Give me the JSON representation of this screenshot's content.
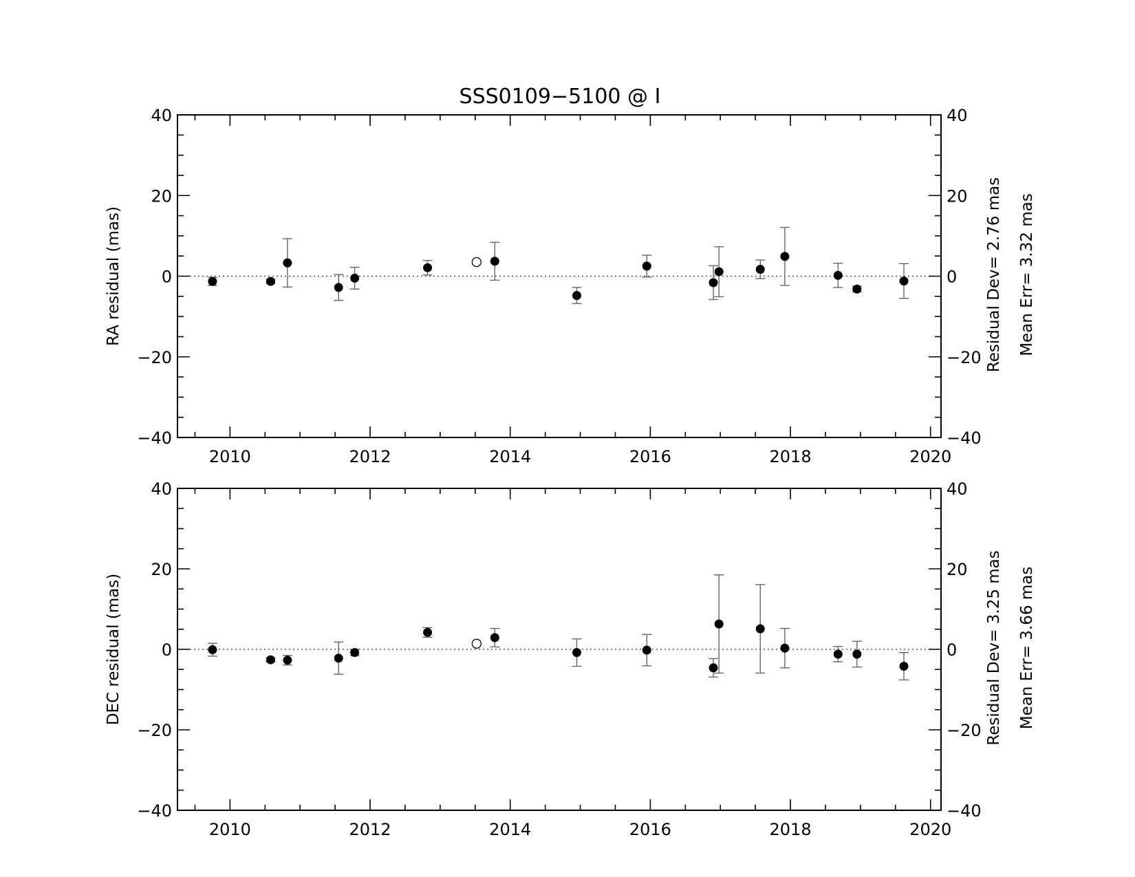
{
  "chart_data": {
    "type": "scatter",
    "title": "SSS0109−5100 @ I",
    "x_ticks": [
      "2010",
      "2012",
      "2014",
      "2016",
      "2018",
      "2020"
    ],
    "y_ticks": [
      "40",
      "20",
      "0",
      "−20",
      "−40"
    ],
    "xlim": [
      2009.25,
      2020.15
    ],
    "panels": [
      {
        "ylabel": "RA residual (mas)",
        "ylim": [
          -40,
          40
        ],
        "right_text": [
          "Residual Dev=   2.76 mas",
          "Mean Err=  3.32 mas"
        ],
        "points": [
          {
            "x": 2009.75,
            "y": -1.3,
            "err": 1.0
          },
          {
            "x": 2010.58,
            "y": -1.3,
            "err": 0.5
          },
          {
            "x": 2010.82,
            "y": 3.3,
            "err": 6.0
          },
          {
            "x": 2011.55,
            "y": -2.8,
            "err": 3.2
          },
          {
            "x": 2011.78,
            "y": -0.5,
            "err": 2.7
          },
          {
            "x": 2012.82,
            "y": 2.1,
            "err": 1.8
          },
          {
            "x": 2013.78,
            "y": 3.7,
            "err": 4.7
          },
          {
            "x": 2014.95,
            "y": -4.8,
            "err": 2.0
          },
          {
            "x": 2015.95,
            "y": 2.5,
            "err": 2.7
          },
          {
            "x": 2016.9,
            "y": -1.6,
            "err": 4.2
          },
          {
            "x": 2016.98,
            "y": 1.1,
            "err": 6.2
          },
          {
            "x": 2017.57,
            "y": 1.7,
            "err": 2.3
          },
          {
            "x": 2017.92,
            "y": 4.9,
            "err": 7.2
          },
          {
            "x": 2018.68,
            "y": 0.2,
            "err": 3.0
          },
          {
            "x": 2018.95,
            "y": -3.2,
            "err": 0.7
          },
          {
            "x": 2019.62,
            "y": -1.2,
            "err": 4.3
          }
        ],
        "rejected": [
          {
            "x": 2013.52,
            "y": 3.5
          }
        ]
      },
      {
        "ylabel": "DEC residual (mas)",
        "ylim": [
          -40,
          40
        ],
        "right_text": [
          "Residual Dev=   3.25 mas",
          "Mean Err=  3.66 mas"
        ],
        "points": [
          {
            "x": 2009.75,
            "y": -0.1,
            "err": 1.6
          },
          {
            "x": 2010.58,
            "y": -2.6,
            "err": 0.5
          },
          {
            "x": 2010.82,
            "y": -2.7,
            "err": 1.2
          },
          {
            "x": 2011.55,
            "y": -2.2,
            "err": 4.0
          },
          {
            "x": 2011.78,
            "y": -0.8,
            "err": 0.8
          },
          {
            "x": 2012.82,
            "y": 4.2,
            "err": 1.2
          },
          {
            "x": 2013.78,
            "y": 2.9,
            "err": 2.3
          },
          {
            "x": 2014.95,
            "y": -0.8,
            "err": 3.4
          },
          {
            "x": 2015.95,
            "y": -0.2,
            "err": 3.9
          },
          {
            "x": 2016.9,
            "y": -4.6,
            "err": 2.3
          },
          {
            "x": 2016.98,
            "y": 6.3,
            "err": 12.2
          },
          {
            "x": 2017.57,
            "y": 5.1,
            "err": 11.0
          },
          {
            "x": 2017.92,
            "y": 0.3,
            "err": 4.9
          },
          {
            "x": 2018.68,
            "y": -1.2,
            "err": 1.9
          },
          {
            "x": 2018.95,
            "y": -1.2,
            "err": 3.2
          },
          {
            "x": 2019.62,
            "y": -4.2,
            "err": 3.4
          }
        ],
        "rejected": [
          {
            "x": 2013.52,
            "y": 1.4
          }
        ]
      }
    ]
  }
}
